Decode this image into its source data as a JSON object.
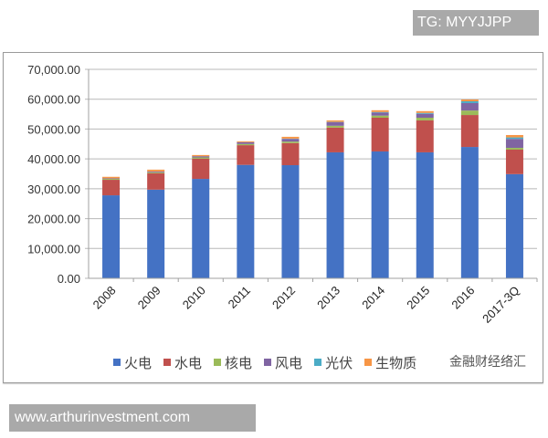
{
  "overlays": {
    "tg_badge": "TG: MYYJJPP",
    "url_badge": "www.arthurinvestment.com",
    "wechat_watermark": "金融财经络汇"
  },
  "chart_data": {
    "type": "bar",
    "stacked": true,
    "title": "",
    "xlabel": "",
    "ylabel": "",
    "ylim": [
      0,
      70000
    ],
    "yticks": [
      "0.00",
      "10,000.00",
      "20,000.00",
      "30,000.00",
      "40,000.00",
      "50,000.00",
      "60,000.00",
      "70,000.00"
    ],
    "grid": true,
    "legend_position": "bottom",
    "categories": [
      "2008",
      "2009",
      "2010",
      "2011",
      "2012",
      "2013",
      "2014",
      "2015",
      "2016",
      "2017-3Q"
    ],
    "series": [
      {
        "name": "火电",
        "color": "#4472c4",
        "values": [
          27800,
          29700,
          33300,
          38000,
          37900,
          42200,
          42500,
          42200,
          44000,
          34900
        ]
      },
      {
        "name": "水电",
        "color": "#c0504d",
        "values": [
          5200,
          5500,
          6800,
          6600,
          7400,
          8300,
          11300,
          10700,
          10700,
          8200
        ]
      },
      {
        "name": "核电",
        "color": "#9bbb59",
        "values": [
          300,
          300,
          400,
          400,
          500,
          600,
          700,
          900,
          1500,
          600
        ]
      },
      {
        "name": "风电",
        "color": "#8064a2",
        "values": [
          200,
          300,
          400,
          600,
          900,
          1200,
          1000,
          1300,
          2500,
          3000
        ]
      },
      {
        "name": "光伏",
        "color": "#4bacc6",
        "values": [
          0,
          0,
          0,
          0,
          100,
          100,
          200,
          300,
          600,
          500
        ]
      },
      {
        "name": "生物质",
        "color": "#f79646",
        "values": [
          500,
          600,
          400,
          300,
          600,
          500,
          600,
          600,
          600,
          800
        ]
      }
    ]
  }
}
